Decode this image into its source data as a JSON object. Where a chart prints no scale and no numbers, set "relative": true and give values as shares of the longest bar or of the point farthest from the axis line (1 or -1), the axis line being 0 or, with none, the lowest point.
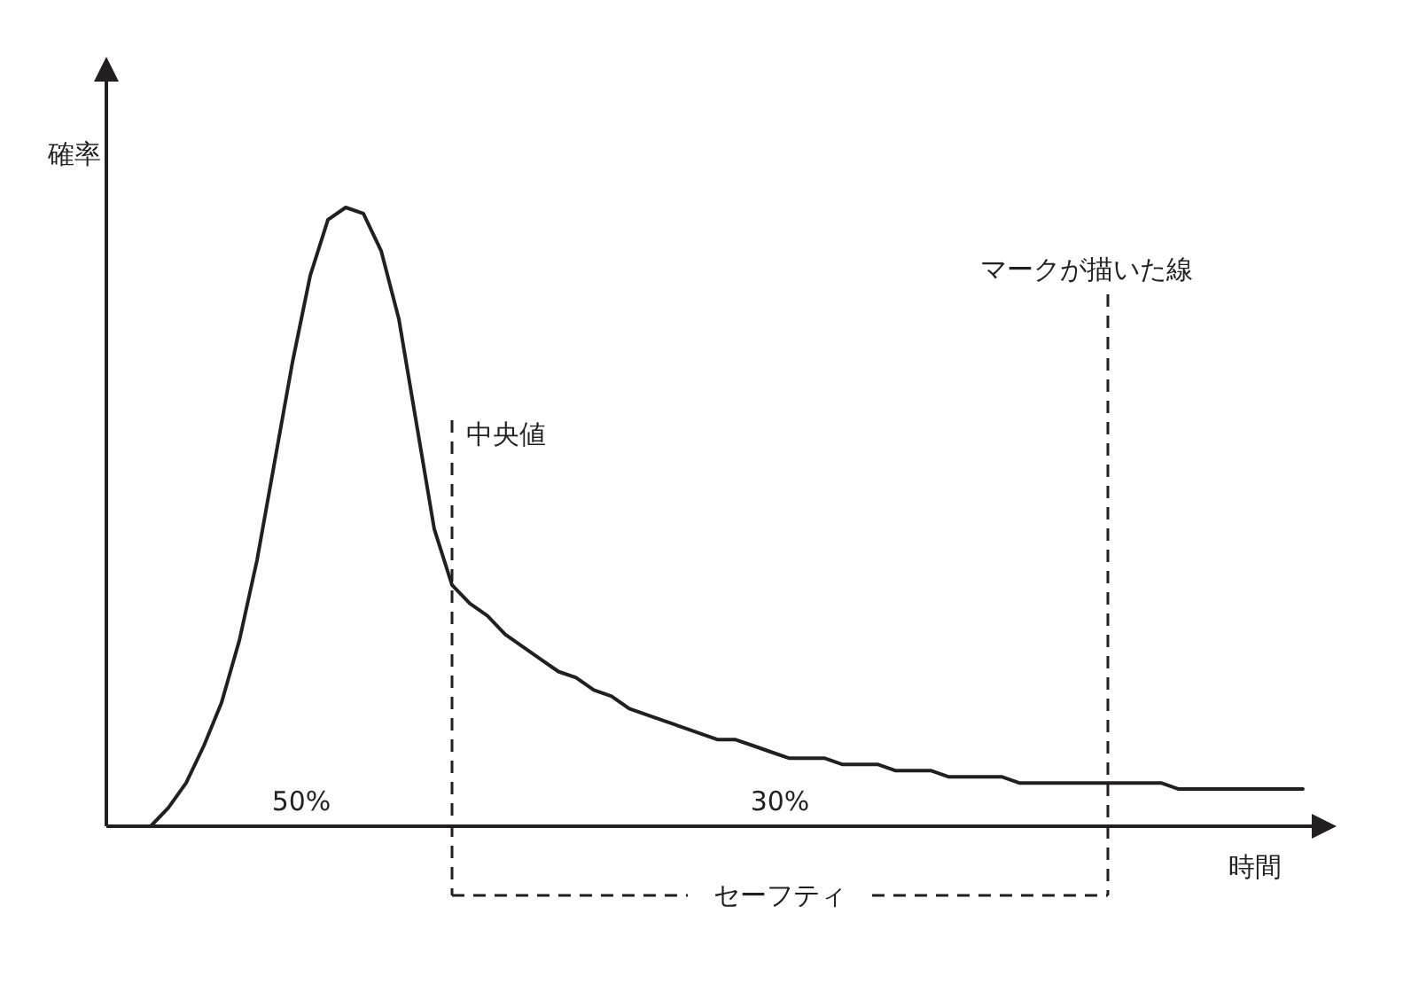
{
  "chart_data": {
    "type": "line",
    "relative": true,
    "xlabel": "時間",
    "ylabel": "確率",
    "categories": [
      null,
      null,
      null,
      null,
      null,
      null,
      null,
      null,
      null,
      null,
      null,
      null,
      null,
      null,
      null,
      null,
      null,
      null,
      null,
      null,
      null,
      null,
      null,
      null,
      null,
      null,
      null,
      null,
      null,
      null,
      null,
      null,
      null,
      null,
      null,
      null,
      null,
      null,
      null,
      null,
      null,
      null,
      null,
      null,
      null,
      null,
      null,
      null,
      null,
      null,
      null,
      null,
      null,
      null,
      null,
      null,
      null,
      null,
      null,
      null,
      null,
      null,
      null,
      null,
      null,
      null
    ],
    "series": [
      {
        "color": "#231f20",
        "values": [
          0,
          0.03,
          0.07,
          0.13,
          0.2,
          0.3,
          0.43,
          0.59,
          0.75,
          0.89,
          0.98,
          1.0,
          0.99,
          0.93,
          0.82,
          0.65,
          0.48,
          0.39,
          0.36,
          0.34,
          0.31,
          0.29,
          0.27,
          0.25,
          0.24,
          0.22,
          0.21,
          0.19,
          0.18,
          0.17,
          0.16,
          0.15,
          0.14,
          0.14,
          0.13,
          0.12,
          0.11,
          0.11,
          0.11,
          0.1,
          0.1,
          0.1,
          0.09,
          0.09,
          0.09,
          0.08,
          0.08,
          0.08,
          0.08,
          0.07,
          0.07,
          0.07,
          0.07,
          0.07,
          0.07,
          0.07,
          0.07,
          0.07,
          0.06,
          0.06,
          0.06,
          0.06,
          0.06,
          0.06,
          0.06,
          0.06
        ]
      }
    ],
    "annotations": [
      "中央値",
      "マークが描いた線",
      "セーフティ",
      "50%",
      "30%"
    ]
  }
}
